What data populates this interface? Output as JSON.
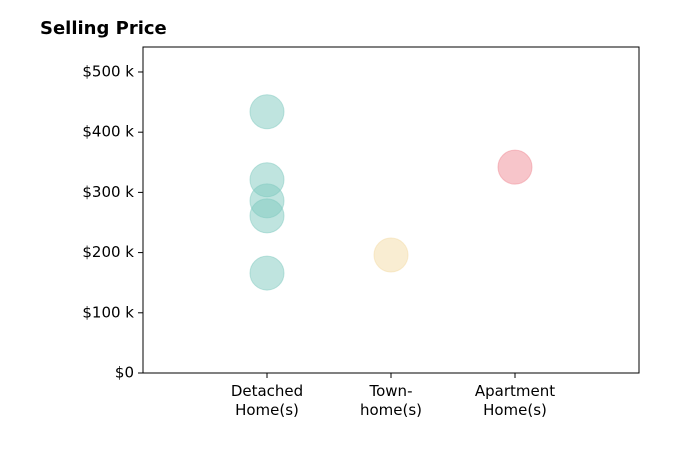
{
  "chart_data": {
    "type": "strip",
    "title": "Selling Price",
    "categories": [
      "Detached\nHome(s)",
      "Town-\nhome(s)",
      "Apartment\nHome(s)"
    ],
    "values": [
      [
        434,
        321,
        286,
        261,
        166
      ],
      [
        196
      ],
      [
        342
      ]
    ],
    "colors": [
      "#7fc9c0",
      "#f3dca6",
      "#f08c96"
    ],
    "opacity": 0.5,
    "xlim": [
      0,
      4
    ],
    "ylim": [
      0,
      541.5
    ],
    "yticks": [
      {
        "value": 0,
        "label": "$0"
      },
      {
        "value": 100,
        "label": "$100 k"
      },
      {
        "value": 200,
        "label": "$200 k"
      },
      {
        "value": 300,
        "label": "$300 k"
      },
      {
        "value": 400,
        "label": "$400 k"
      },
      {
        "value": 500,
        "label": "$500 k"
      }
    ],
    "grid": false
  }
}
